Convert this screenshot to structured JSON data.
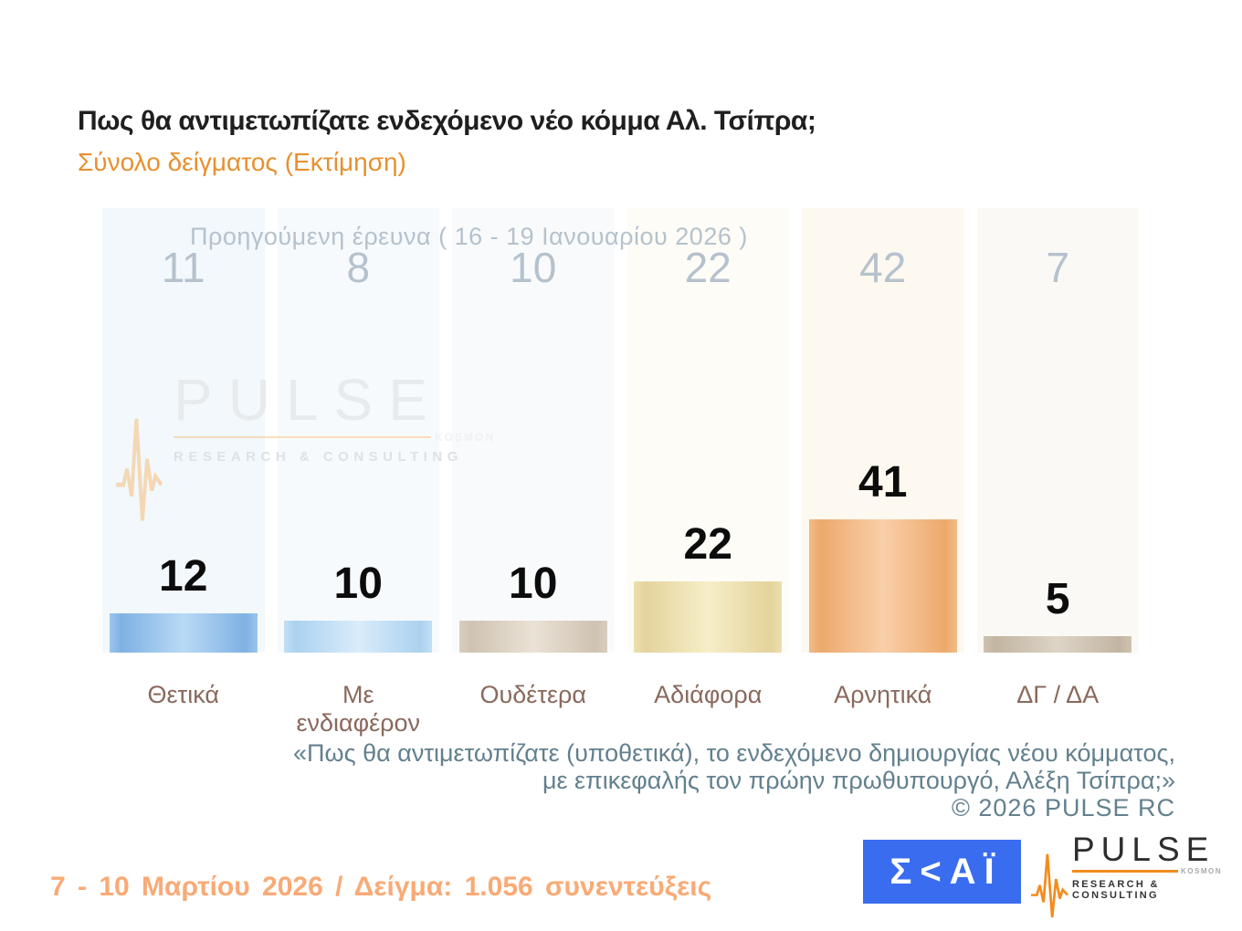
{
  "header": {
    "title": "Πως θα αντιμετωπίζατε ενδεχόμενο νέο κόμμα Αλ. Τσίπρα;",
    "subtitle": "Σύνολο δείγματος  (Εκτίμηση)"
  },
  "chart_data": {
    "type": "bar",
    "title": "Πως θα αντιμετωπίζατε ενδεχόμενο νέο κόμμα Αλ. Τσίπρα;",
    "categories": [
      "Θετικά",
      "Με ενδιαφέρον",
      "Ουδέτερα",
      "Αδιάφορα",
      "Αρνητικά",
      "ΔΓ / ΔΑ"
    ],
    "series": [
      {
        "name": "previous",
        "label": "Προηγούμενη έρευνα ( 16 - 19 Ιανουαρίου 2026 )",
        "values": [
          11,
          8,
          10,
          22,
          42,
          7
        ]
      },
      {
        "name": "current",
        "values": [
          12,
          10,
          10,
          22,
          41,
          5
        ]
      }
    ],
    "ylim": [
      0,
      50
    ],
    "grid": false,
    "legend_position": "none",
    "column_tints": [
      "#f2f8fc",
      "#f7fafd",
      "#f9fafb",
      "#fdfcf6",
      "#fdf8f0",
      "#faf9f6"
    ],
    "bar_colors": [
      {
        "cap": "#9cc5ec",
        "edge": "#7fb1e3",
        "center": "#b8daf5"
      },
      {
        "cap": "#c2dff5",
        "edge": "#abd2f0",
        "center": "#d9ecfb"
      },
      {
        "cap": "#d8cec0",
        "edge": "#cfc3b2",
        "center": "#eae2d6"
      },
      {
        "cap": "#ecdfae",
        "edge": "#e5d39c",
        "center": "#f6eec8"
      },
      {
        "cap": "#f2bb88",
        "edge": "#eda96c",
        "center": "#f9cfa9"
      },
      {
        "cap": "#cec3b1",
        "edge": "#c2b5a1",
        "center": "#ddd4c7"
      }
    ],
    "current_value_color": "#0c0c0c",
    "previous_value_color": "#b5c2cd",
    "category_label_color": "#8a695d"
  },
  "footnote": {
    "line1": "«Πως θα αντιμετωπίζατε (υποθετικά), το ενδεχόμενο δημιουργίας νέου κόμματος,",
    "line2": "με επικεφαλής τον πρώην πρωθυπουργό, Αλέξη Τσίπρα;»",
    "copyright": "©  2026  PULSE RC"
  },
  "source": {
    "text": "7 - 10  Μαρτίου 2026  /  Δείγμα:  1.056 συνεντεύξεις"
  },
  "watermark": {
    "brand": "PULSE",
    "kosmon": "KOSMON",
    "sub": "RESEARCH & CONSULTING"
  },
  "logos": {
    "skai": {
      "text": "Σ<ΑΪ",
      "bg": "#3a6cf0"
    },
    "pulse": {
      "brand": "PULSE",
      "kosmon": "KOSMON",
      "sub": "RESEARCH & CONSULTING",
      "accent": "#f28c1e"
    }
  }
}
